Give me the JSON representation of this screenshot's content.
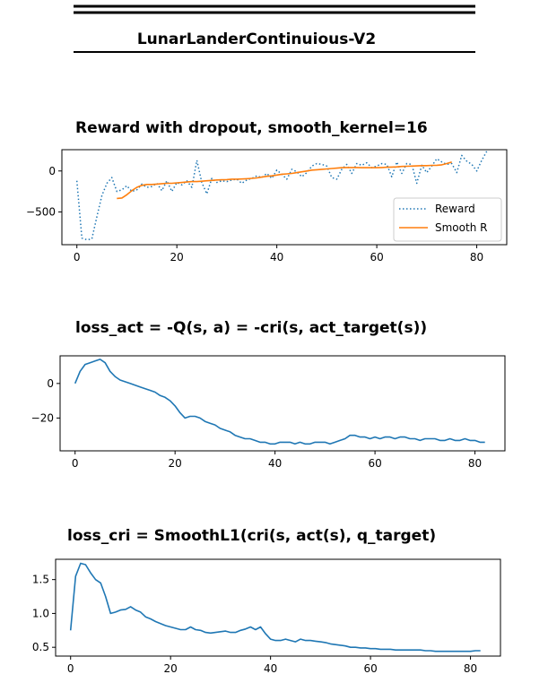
{
  "header": {
    "title": "LunarLanderContinuious-V2"
  },
  "chart_data": [
    {
      "type": "line",
      "title": "Reward with dropout,  smooth_kernel=16",
      "xlim": [
        -3,
        86
      ],
      "ylim": [
        -900,
        260
      ],
      "xticks": [
        0,
        20,
        40,
        60,
        80
      ],
      "yticks": [
        0,
        -500
      ],
      "ytick_labels": [
        "0",
        "−500"
      ],
      "legend": "lower-right",
      "series": [
        {
          "name": "Reward",
          "style": "dotted",
          "color": "#1f77b4",
          "x": [
            0,
            1,
            2,
            3,
            4,
            5,
            6,
            7,
            8,
            9,
            10,
            11,
            12,
            13,
            14,
            15,
            16,
            17,
            18,
            19,
            20,
            21,
            22,
            23,
            24,
            25,
            26,
            27,
            28,
            29,
            30,
            31,
            32,
            33,
            34,
            35,
            36,
            37,
            38,
            39,
            40,
            41,
            42,
            43,
            44,
            45,
            46,
            47,
            48,
            49,
            50,
            51,
            52,
            53,
            54,
            55,
            56,
            57,
            58,
            59,
            60,
            61,
            62,
            63,
            64,
            65,
            66,
            67,
            68,
            69,
            70,
            71,
            72,
            73,
            74,
            75,
            76,
            77,
            78,
            79,
            80,
            81,
            82
          ],
          "y": [
            -120,
            -820,
            -840,
            -830,
            -560,
            -300,
            -150,
            -80,
            -250,
            -230,
            -180,
            -250,
            -230,
            -160,
            -200,
            -190,
            -150,
            -240,
            -120,
            -250,
            -140,
            -170,
            -120,
            -200,
            130,
            -140,
            -280,
            -90,
            -140,
            -120,
            -130,
            -110,
            -100,
            -150,
            -110,
            -90,
            -60,
            -80,
            -30,
            -90,
            10,
            -40,
            -100,
            20,
            -10,
            -70,
            -20,
            60,
            90,
            80,
            60,
            -80,
            -100,
            20,
            80,
            -30,
            90,
            70,
            100,
            40,
            60,
            90,
            80,
            -70,
            110,
            -30,
            90,
            80,
            -150,
            70,
            -20,
            60,
            150,
            110,
            80,
            90,
            -20,
            190,
            120,
            80,
            0,
            130,
            240
          ]
        },
        {
          "name": "Smooth R",
          "style": "solid",
          "color": "#ff7f0e",
          "x": [
            8,
            9,
            10,
            11,
            12,
            13,
            14,
            15,
            16,
            17,
            18,
            19,
            20,
            21,
            22,
            23,
            24,
            25,
            26,
            27,
            28,
            29,
            30,
            31,
            32,
            33,
            34,
            35,
            36,
            37,
            38,
            39,
            40,
            41,
            42,
            43,
            44,
            45,
            46,
            47,
            48,
            49,
            50,
            51,
            52,
            53,
            54,
            55,
            56,
            57,
            58,
            59,
            60,
            61,
            62,
            63,
            64,
            65,
            66,
            67,
            68,
            69,
            70,
            71,
            72,
            73,
            74,
            75
          ],
          "y": [
            -335,
            -330,
            -290,
            -240,
            -200,
            -175,
            -165,
            -165,
            -160,
            -155,
            -150,
            -150,
            -145,
            -140,
            -135,
            -130,
            -130,
            -125,
            -120,
            -115,
            -110,
            -108,
            -105,
            -100,
            -100,
            -98,
            -95,
            -90,
            -85,
            -75,
            -65,
            -60,
            -50,
            -40,
            -35,
            -30,
            -20,
            -10,
            0,
            10,
            15,
            20,
            25,
            30,
            35,
            40,
            42,
            42,
            42,
            40,
            40,
            40,
            40,
            42,
            45,
            48,
            50,
            55,
            58,
            60,
            62,
            65,
            65,
            68,
            70,
            75,
            90,
            110
          ]
        }
      ]
    },
    {
      "type": "line",
      "title": "loss_act = -Q(s, a) = -cri(s, act_target(s))",
      "xlim": [
        -3,
        86
      ],
      "ylim": [
        -39,
        16
      ],
      "xticks": [
        0,
        20,
        40,
        60,
        80
      ],
      "yticks": [
        0,
        -20
      ],
      "ytick_labels": [
        "0",
        "−20"
      ],
      "series": [
        {
          "color": "#1f77b4",
          "x": [
            0,
            1,
            2,
            3,
            4,
            5,
            6,
            7,
            8,
            9,
            10,
            11,
            12,
            13,
            14,
            15,
            16,
            17,
            18,
            19,
            20,
            21,
            22,
            23,
            24,
            25,
            26,
            27,
            28,
            29,
            30,
            31,
            32,
            33,
            34,
            35,
            36,
            37,
            38,
            39,
            40,
            41,
            42,
            43,
            44,
            45,
            46,
            47,
            48,
            49,
            50,
            51,
            52,
            53,
            54,
            55,
            56,
            57,
            58,
            59,
            60,
            61,
            62,
            63,
            64,
            65,
            66,
            67,
            68,
            69,
            70,
            71,
            72,
            73,
            74,
            75,
            76,
            77,
            78,
            79,
            80,
            81,
            82
          ],
          "y": [
            0,
            7,
            11,
            12,
            13,
            14,
            12,
            7,
            4,
            2,
            1,
            0,
            -1,
            -2,
            -3,
            -4,
            -5,
            -7,
            -8,
            -10,
            -13,
            -17,
            -20,
            -19,
            -19,
            -20,
            -22,
            -23,
            -24,
            -26,
            -27,
            -28,
            -30,
            -31,
            -32,
            -32,
            -33,
            -34,
            -34,
            -35,
            -35,
            -34,
            -34,
            -34,
            -35,
            -34,
            -35,
            -35,
            -34,
            -34,
            -34,
            -35,
            -34,
            -33,
            -32,
            -30,
            -30,
            -31,
            -31,
            -32,
            -31,
            -32,
            -31,
            -31,
            -32,
            -31,
            -31,
            -32,
            -32,
            -33,
            -32,
            -32,
            -32,
            -33,
            -33,
            -32,
            -33,
            -33,
            -32,
            -33,
            -33,
            -34,
            -34
          ]
        }
      ]
    },
    {
      "type": "line",
      "title": "loss_cri = SmoothL1(cri(s, act(s), q_target)",
      "xlim": [
        -3,
        86
      ],
      "ylim": [
        0.37,
        1.8
      ],
      "xticks": [
        0,
        20,
        40,
        60,
        80
      ],
      "yticks": [
        1.5,
        1.0,
        0.5
      ],
      "ytick_labels": [
        "1.5",
        "1.0",
        "0.5"
      ],
      "series": [
        {
          "color": "#1f77b4",
          "x": [
            0,
            1,
            2,
            3,
            4,
            5,
            6,
            7,
            8,
            9,
            10,
            11,
            12,
            13,
            14,
            15,
            16,
            17,
            18,
            19,
            20,
            21,
            22,
            23,
            24,
            25,
            26,
            27,
            28,
            29,
            30,
            31,
            32,
            33,
            34,
            35,
            36,
            37,
            38,
            39,
            40,
            41,
            42,
            43,
            44,
            45,
            46,
            47,
            48,
            49,
            50,
            51,
            52,
            53,
            54,
            55,
            56,
            57,
            58,
            59,
            60,
            61,
            62,
            63,
            64,
            65,
            66,
            67,
            68,
            69,
            70,
            71,
            72,
            73,
            74,
            75,
            76,
            77,
            78,
            79,
            80,
            81,
            82
          ],
          "y": [
            0.75,
            1.55,
            1.74,
            1.72,
            1.6,
            1.5,
            1.45,
            1.25,
            1.0,
            1.02,
            1.05,
            1.06,
            1.1,
            1.05,
            1.02,
            0.95,
            0.92,
            0.88,
            0.85,
            0.82,
            0.8,
            0.78,
            0.76,
            0.76,
            0.8,
            0.76,
            0.75,
            0.72,
            0.71,
            0.72,
            0.73,
            0.74,
            0.72,
            0.72,
            0.75,
            0.77,
            0.8,
            0.76,
            0.8,
            0.7,
            0.62,
            0.6,
            0.6,
            0.62,
            0.6,
            0.58,
            0.62,
            0.6,
            0.6,
            0.59,
            0.58,
            0.57,
            0.55,
            0.54,
            0.53,
            0.52,
            0.5,
            0.5,
            0.49,
            0.49,
            0.48,
            0.48,
            0.47,
            0.47,
            0.47,
            0.46,
            0.46,
            0.46,
            0.46,
            0.46,
            0.46,
            0.45,
            0.45,
            0.44,
            0.44,
            0.44,
            0.44,
            0.44,
            0.44,
            0.44,
            0.44,
            0.45,
            0.45
          ]
        }
      ]
    }
  ]
}
